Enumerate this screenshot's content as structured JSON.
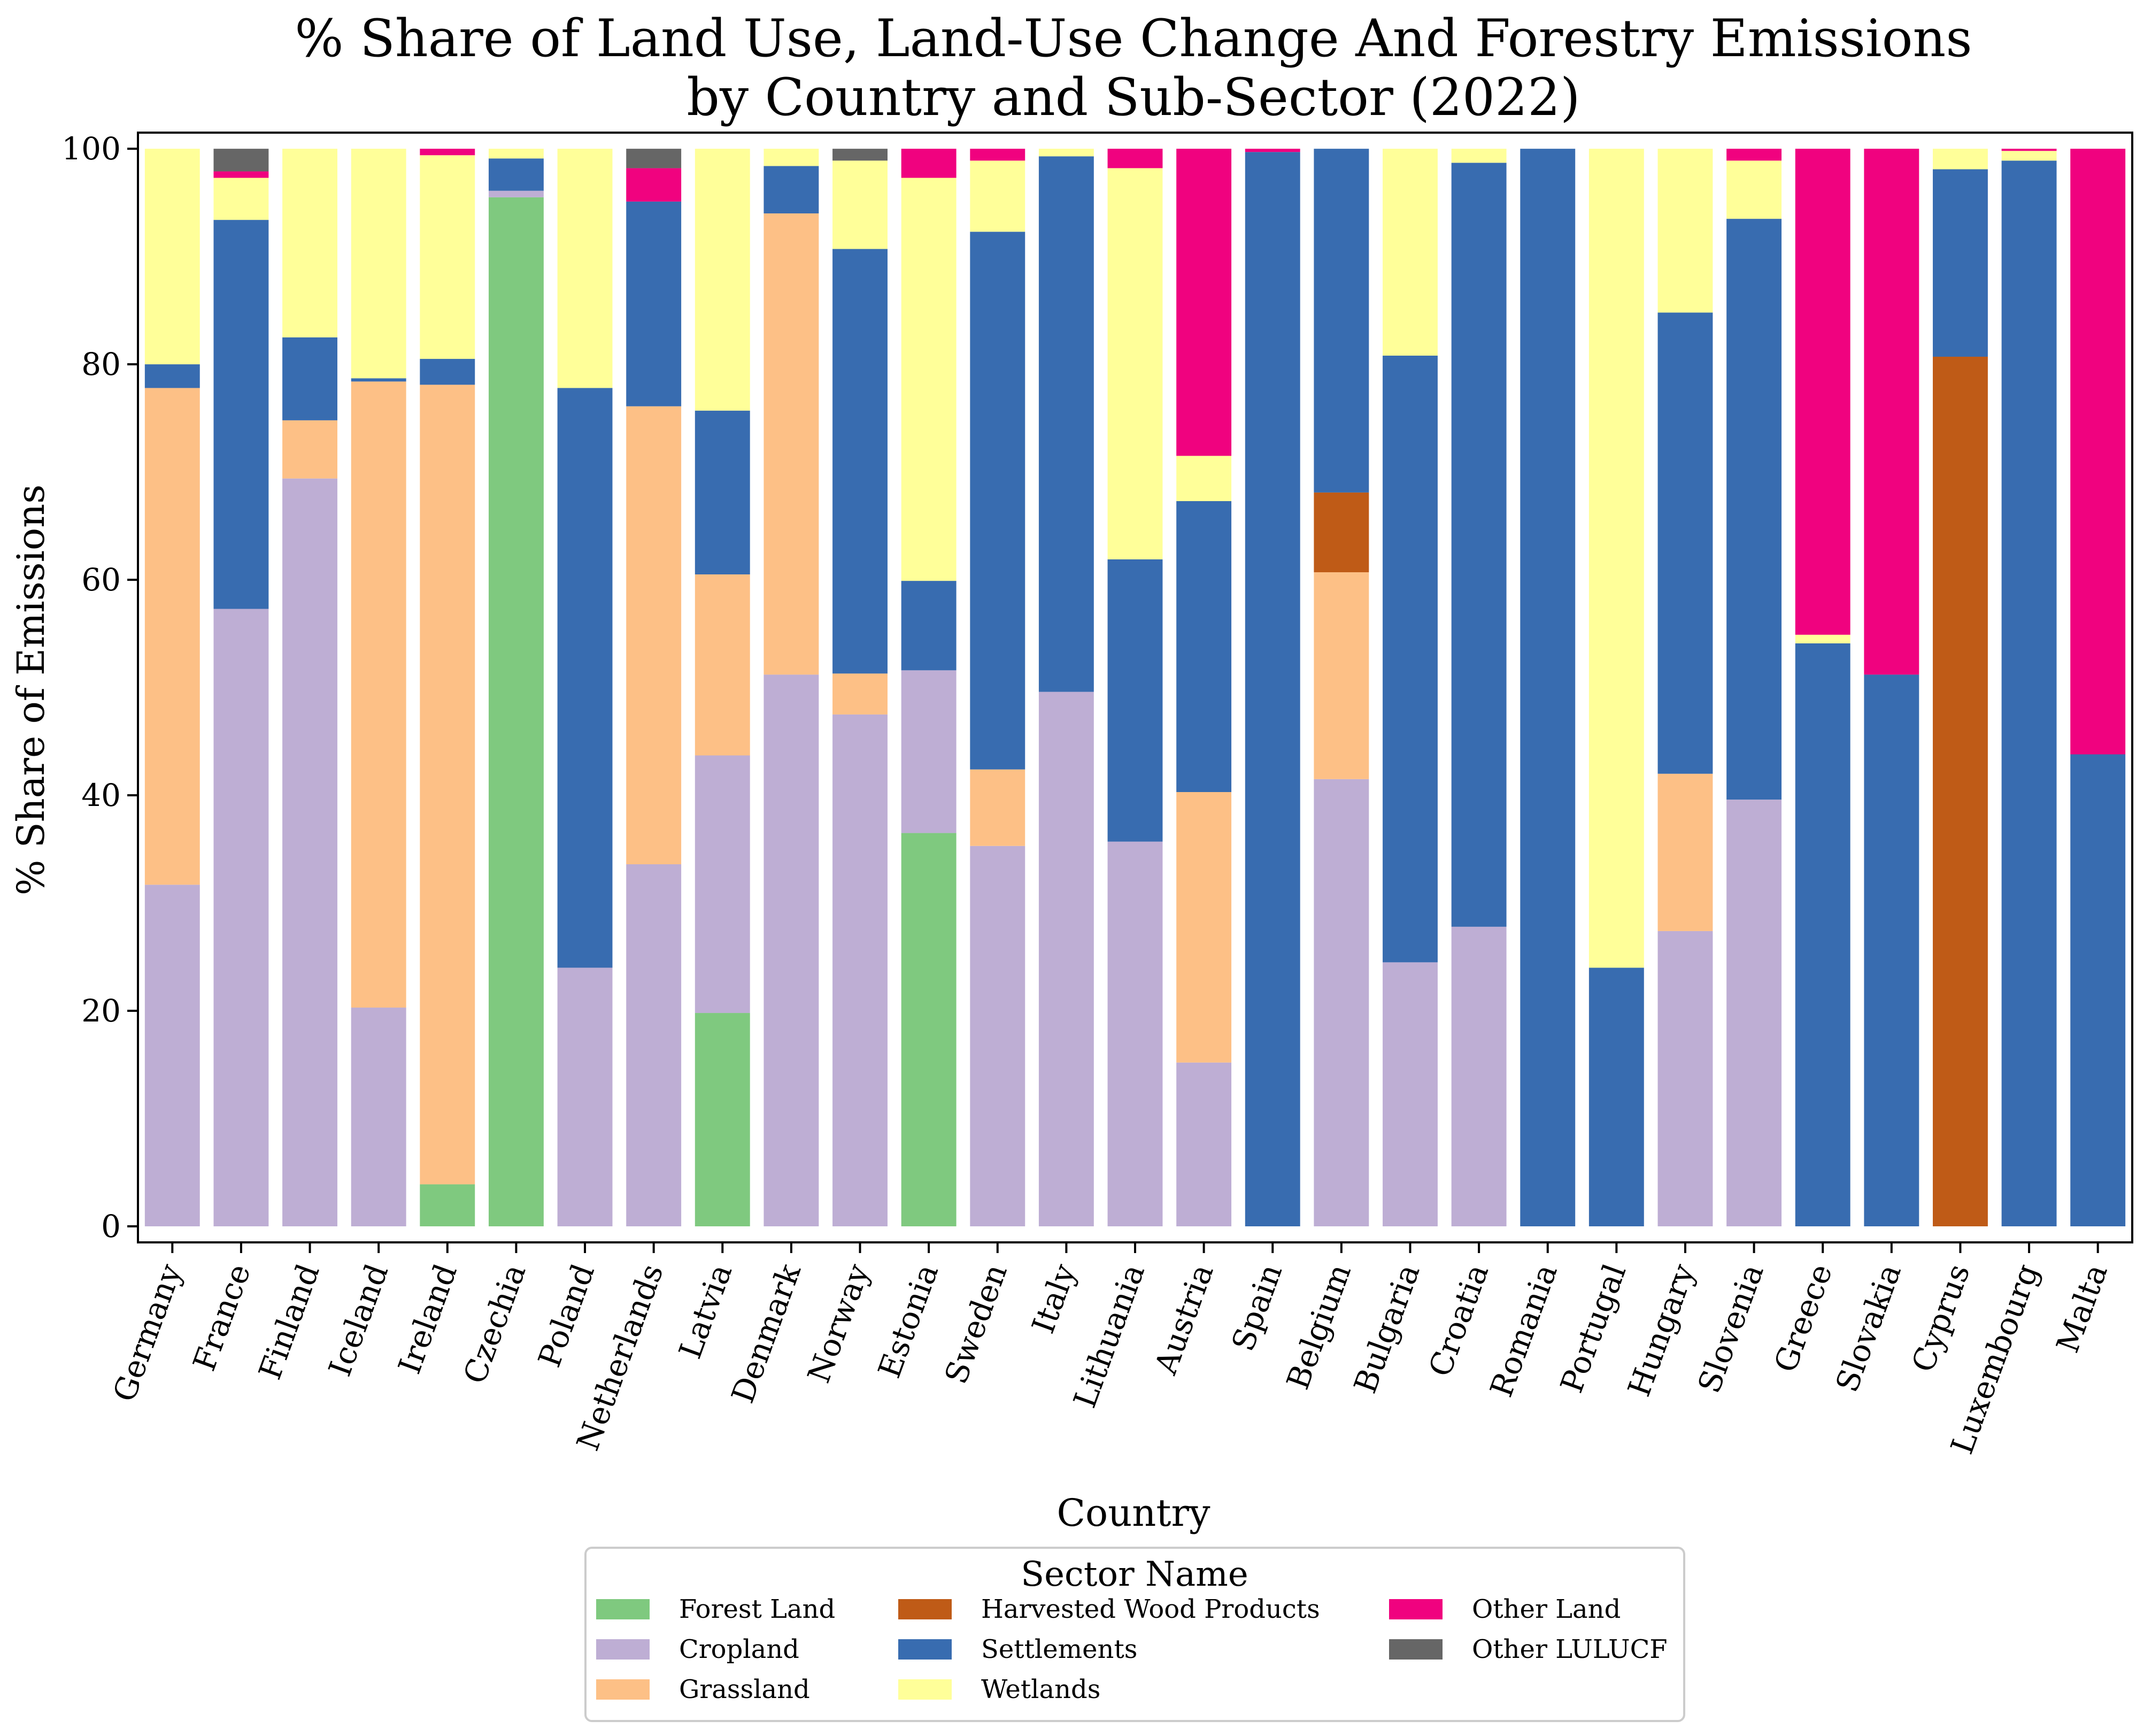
{
  "chart_data": {
    "type": "bar",
    "stacked": true,
    "title_lines": [
      "% Share of Land Use, Land-Use Change And Forestry Emissions",
      "by Country and Sub-Sector (2022)"
    ],
    "xlabel": "Country",
    "ylabel": "% Share of Emissions",
    "ylim": [
      0,
      101
    ],
    "yticks": [
      0,
      20,
      40,
      60,
      80,
      100
    ],
    "grid": false,
    "legend": {
      "title": "Sector Name",
      "placement": "bottom-center",
      "columns": 3
    },
    "categories": [
      "Germany",
      "France",
      "Finland",
      "Iceland",
      "Ireland",
      "Czechia",
      "Poland",
      "Netherlands",
      "Latvia",
      "Denmark",
      "Norway",
      "Estonia",
      "Sweden",
      "Italy",
      "Lithuania",
      "Austria",
      "Spain",
      "Belgium",
      "Bulgaria",
      "Croatia",
      "Romania",
      "Portugal",
      "Hungary",
      "Slovenia",
      "Greece",
      "Slovakia",
      "Cyprus",
      "Luxembourg",
      "Malta"
    ],
    "series": [
      {
        "name": "Forest Land",
        "color": "#7fc97f",
        "values": [
          0,
          0,
          0,
          0,
          3.9,
          95.5,
          0,
          0,
          19.8,
          0,
          0,
          36.5,
          0,
          0,
          0,
          0,
          0,
          0,
          0,
          0,
          0,
          0,
          0,
          0,
          0,
          0,
          0,
          0,
          0
        ]
      },
      {
        "name": "Cropland",
        "color": "#beaed4",
        "values": [
          31.7,
          57.3,
          69.4,
          20.3,
          0,
          0.6,
          24.0,
          33.6,
          23.9,
          51.2,
          47.5,
          15.1,
          35.3,
          49.6,
          35.7,
          15.2,
          0,
          41.5,
          24.5,
          27.8,
          0,
          0,
          27.4,
          39.6,
          0,
          0,
          0,
          0,
          0
        ]
      },
      {
        "name": "Grassland",
        "color": "#fdc086",
        "values": [
          46.1,
          0,
          5.4,
          58.1,
          74.2,
          0,
          0,
          42.5,
          16.8,
          42.8,
          3.8,
          0,
          7.1,
          0,
          0,
          25.1,
          0,
          19.2,
          0,
          0,
          0,
          0,
          14.6,
          0,
          0,
          0,
          0,
          0,
          0
        ]
      },
      {
        "name": "Harvested Wood Products",
        "color": "#bf5b17",
        "values": [
          0,
          0,
          0,
          0,
          0,
          0,
          0,
          0,
          0,
          0,
          0,
          0,
          0,
          0,
          0,
          0,
          0,
          7.4,
          0,
          0,
          0,
          0,
          0,
          0,
          0,
          0,
          80.7,
          0,
          0
        ]
      },
      {
        "name": "Settlements",
        "color": "#386cb0",
        "values": [
          2.2,
          36.1,
          7.7,
          0.3,
          2.4,
          3.0,
          53.8,
          19.0,
          15.2,
          4.4,
          39.4,
          8.3,
          49.9,
          49.7,
          26.2,
          27.0,
          99.7,
          31.9,
          56.3,
          70.9,
          100,
          24.0,
          42.8,
          53.9,
          54.1,
          51.2,
          17.4,
          98.9,
          43.8
        ]
      },
      {
        "name": "Wetlands",
        "color": "#ffff99",
        "values": [
          20.0,
          3.9,
          17.5,
          21.3,
          18.9,
          0.9,
          22.2,
          0,
          24.3,
          1.6,
          8.2,
          37.4,
          6.6,
          0.7,
          36.3,
          4.2,
          0,
          0,
          19.2,
          1.3,
          0,
          76.0,
          15.2,
          5.4,
          0.8,
          0,
          1.9,
          0.9,
          0
        ]
      },
      {
        "name": "Other Land",
        "color": "#f0027f",
        "values": [
          0,
          0.6,
          0,
          0,
          0.6,
          0,
          0,
          3.1,
          0,
          0,
          0,
          2.7,
          1.1,
          0,
          1.8,
          28.5,
          0.3,
          0,
          0,
          0,
          0,
          0,
          0,
          1.1,
          45.1,
          48.8,
          0,
          0.2,
          56.2
        ]
      },
      {
        "name": "Other LULUCF",
        "color": "#666666",
        "values": [
          0,
          2.1,
          0,
          0,
          0,
          0,
          0,
          1.8,
          0,
          0,
          1.1,
          0,
          0,
          0,
          0,
          0,
          0,
          0,
          0,
          0,
          0,
          0,
          0,
          0,
          0,
          0,
          0,
          0,
          0
        ]
      }
    ]
  }
}
